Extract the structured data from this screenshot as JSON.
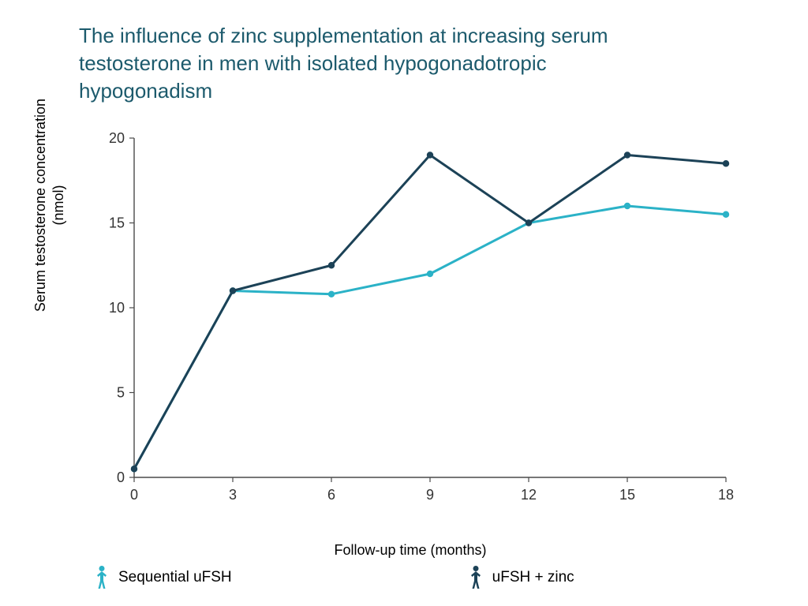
{
  "title": "The influence of zinc supplementation at increasing serum testosterone in men with isolated hypogonadotropic hypogonadism",
  "title_color": "#1c5a6c",
  "chart": {
    "type": "line",
    "background_color": "#ffffff",
    "x": {
      "label": "Follow-up time (months)",
      "min": 0,
      "max": 18,
      "ticks": [
        0,
        3,
        6,
        9,
        12,
        15,
        18
      ]
    },
    "y": {
      "label": "Serum testosterone concentration (nmol)",
      "min": 0,
      "max": 20,
      "ticks": [
        0,
        5,
        10,
        15,
        20
      ]
    },
    "axis_color": "#4a4a4a",
    "tick_font_size": 18,
    "label_font_size": 18,
    "line_width": 3,
    "marker_radius": 4.2,
    "series": [
      {
        "name": "Sequential uFSH",
        "color": "#2bb2c7",
        "x": [
          0,
          3,
          6,
          9,
          12,
          15,
          18
        ],
        "y": [
          0.5,
          11.0,
          10.8,
          12.0,
          15.0,
          16.0,
          15.5
        ]
      },
      {
        "name": "uFSH + zinc",
        "color": "#1c4257",
        "x": [
          0,
          3,
          6,
          9,
          12,
          15,
          18
        ],
        "y": [
          0.5,
          11.0,
          12.5,
          19.0,
          15.0,
          19.0,
          18.5
        ]
      }
    ]
  },
  "legend": {
    "items": [
      {
        "label": "Sequential uFSH",
        "color": "#2bb2c7"
      },
      {
        "label": "uFSH + zinc",
        "color": "#1c4257"
      }
    ],
    "font_size": 19
  }
}
